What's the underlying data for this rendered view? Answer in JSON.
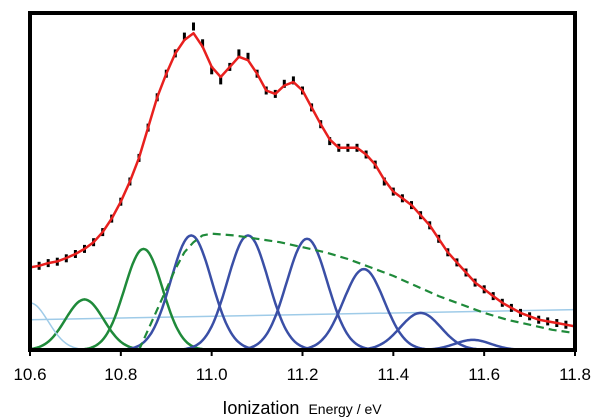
{
  "chart_data": {
    "type": "line",
    "title": "",
    "xlabel_main": "Ionization",
    "xlabel_rest": "Energy / eV",
    "ylabel": "",
    "xlim": [
      10.6,
      11.8
    ],
    "ylim": [
      0,
      1.0
    ],
    "xticks": [
      "10.6",
      "10.8",
      "11.0",
      "11.2",
      "11.4",
      "11.6",
      "11.8"
    ],
    "grid": false,
    "legend": "none",
    "colors": {
      "data": "#000000",
      "fit": "#e8201e",
      "green": "#1f8a3a",
      "blue": "#3a4fa6",
      "light_blue": "#9fcbe8"
    },
    "series": [
      {
        "kind": "experimental-points",
        "x": [
          10.6,
          10.62,
          10.64,
          10.66,
          10.68,
          10.7,
          10.72,
          10.74,
          10.76,
          10.78,
          10.8,
          10.82,
          10.84,
          10.86,
          10.88,
          10.9,
          10.92,
          10.94,
          10.96,
          10.98,
          11.0,
          11.02,
          11.04,
          11.06,
          11.08,
          11.1,
          11.12,
          11.14,
          11.16,
          11.18,
          11.2,
          11.22,
          11.24,
          11.26,
          11.28,
          11.3,
          11.32,
          11.34,
          11.36,
          11.38,
          11.4,
          11.42,
          11.44,
          11.46,
          11.48,
          11.5,
          11.52,
          11.54,
          11.56,
          11.58,
          11.6,
          11.62,
          11.64,
          11.66,
          11.68,
          11.7,
          11.72,
          11.74,
          11.76,
          11.78,
          11.8
        ],
        "y": [
          0.245,
          0.25,
          0.258,
          0.262,
          0.272,
          0.285,
          0.3,
          0.32,
          0.35,
          0.39,
          0.44,
          0.5,
          0.57,
          0.66,
          0.75,
          0.82,
          0.88,
          0.93,
          0.96,
          0.91,
          0.83,
          0.8,
          0.84,
          0.88,
          0.87,
          0.82,
          0.77,
          0.76,
          0.79,
          0.8,
          0.77,
          0.72,
          0.67,
          0.62,
          0.6,
          0.6,
          0.6,
          0.58,
          0.55,
          0.5,
          0.47,
          0.45,
          0.43,
          0.4,
          0.37,
          0.33,
          0.29,
          0.26,
          0.23,
          0.2,
          0.18,
          0.16,
          0.14,
          0.125,
          0.11,
          0.1,
          0.09,
          0.085,
          0.08,
          0.075,
          0.07
        ]
      },
      {
        "kind": "total-fit",
        "x": [
          10.6,
          10.62,
          10.64,
          10.66,
          10.68,
          10.7,
          10.72,
          10.74,
          10.76,
          10.78,
          10.8,
          10.82,
          10.84,
          10.86,
          10.88,
          10.9,
          10.92,
          10.94,
          10.96,
          10.98,
          11.0,
          11.02,
          11.04,
          11.06,
          11.08,
          11.1,
          11.12,
          11.14,
          11.16,
          11.18,
          11.2,
          11.22,
          11.24,
          11.26,
          11.28,
          11.3,
          11.32,
          11.34,
          11.36,
          11.38,
          11.4,
          11.42,
          11.44,
          11.46,
          11.48,
          11.5,
          11.52,
          11.54,
          11.56,
          11.58,
          11.6,
          11.62,
          11.64,
          11.66,
          11.68,
          11.7,
          11.72,
          11.74,
          11.76,
          11.78,
          11.8
        ],
        "y": [
          0.245,
          0.25,
          0.258,
          0.263,
          0.273,
          0.285,
          0.3,
          0.32,
          0.35,
          0.39,
          0.44,
          0.5,
          0.57,
          0.66,
          0.75,
          0.82,
          0.88,
          0.92,
          0.94,
          0.9,
          0.84,
          0.81,
          0.84,
          0.87,
          0.86,
          0.82,
          0.77,
          0.76,
          0.785,
          0.795,
          0.77,
          0.72,
          0.67,
          0.625,
          0.6,
          0.6,
          0.6,
          0.58,
          0.55,
          0.505,
          0.47,
          0.45,
          0.43,
          0.4,
          0.37,
          0.33,
          0.29,
          0.26,
          0.23,
          0.2,
          0.18,
          0.16,
          0.14,
          0.125,
          0.11,
          0.1,
          0.09,
          0.085,
          0.08,
          0.075,
          0.07
        ]
      }
    ],
    "gaussians": [
      {
        "color": "green",
        "center": 10.72,
        "sigma": 0.042,
        "amp": 0.15
      },
      {
        "color": "green",
        "center": 10.85,
        "sigma": 0.042,
        "amp": 0.3
      },
      {
        "color": "blue",
        "center": 10.955,
        "sigma": 0.045,
        "amp": 0.34
      },
      {
        "color": "blue",
        "center": 11.08,
        "sigma": 0.045,
        "amp": 0.34
      },
      {
        "color": "blue",
        "center": 11.21,
        "sigma": 0.045,
        "amp": 0.33
      },
      {
        "color": "blue",
        "center": 11.335,
        "sigma": 0.045,
        "amp": 0.24
      },
      {
        "color": "blue",
        "center": 11.46,
        "sigma": 0.045,
        "amp": 0.11
      },
      {
        "color": "blue",
        "center": 11.575,
        "sigma": 0.04,
        "amp": 0.03
      },
      {
        "color": "light_blue",
        "center": 10.6,
        "sigma": 0.04,
        "amp": 0.14
      }
    ],
    "dashed_green": {
      "x": [
        10.84,
        10.86,
        10.88,
        10.9,
        10.92,
        10.94,
        10.96,
        10.98,
        11.0,
        11.05,
        11.1,
        11.15,
        11.2,
        11.25,
        11.3,
        11.35,
        11.4,
        11.45,
        11.5,
        11.55,
        11.6,
        11.65,
        11.7,
        11.75,
        11.8
      ],
      "y": [
        0.0,
        0.06,
        0.12,
        0.18,
        0.24,
        0.29,
        0.32,
        0.34,
        0.345,
        0.34,
        0.33,
        0.32,
        0.305,
        0.29,
        0.27,
        0.245,
        0.22,
        0.19,
        0.16,
        0.135,
        0.11,
        0.09,
        0.075,
        0.06,
        0.05
      ]
    },
    "baseline": {
      "x": [
        10.6,
        11.8
      ],
      "y": [
        0.09,
        0.12
      ]
    }
  }
}
